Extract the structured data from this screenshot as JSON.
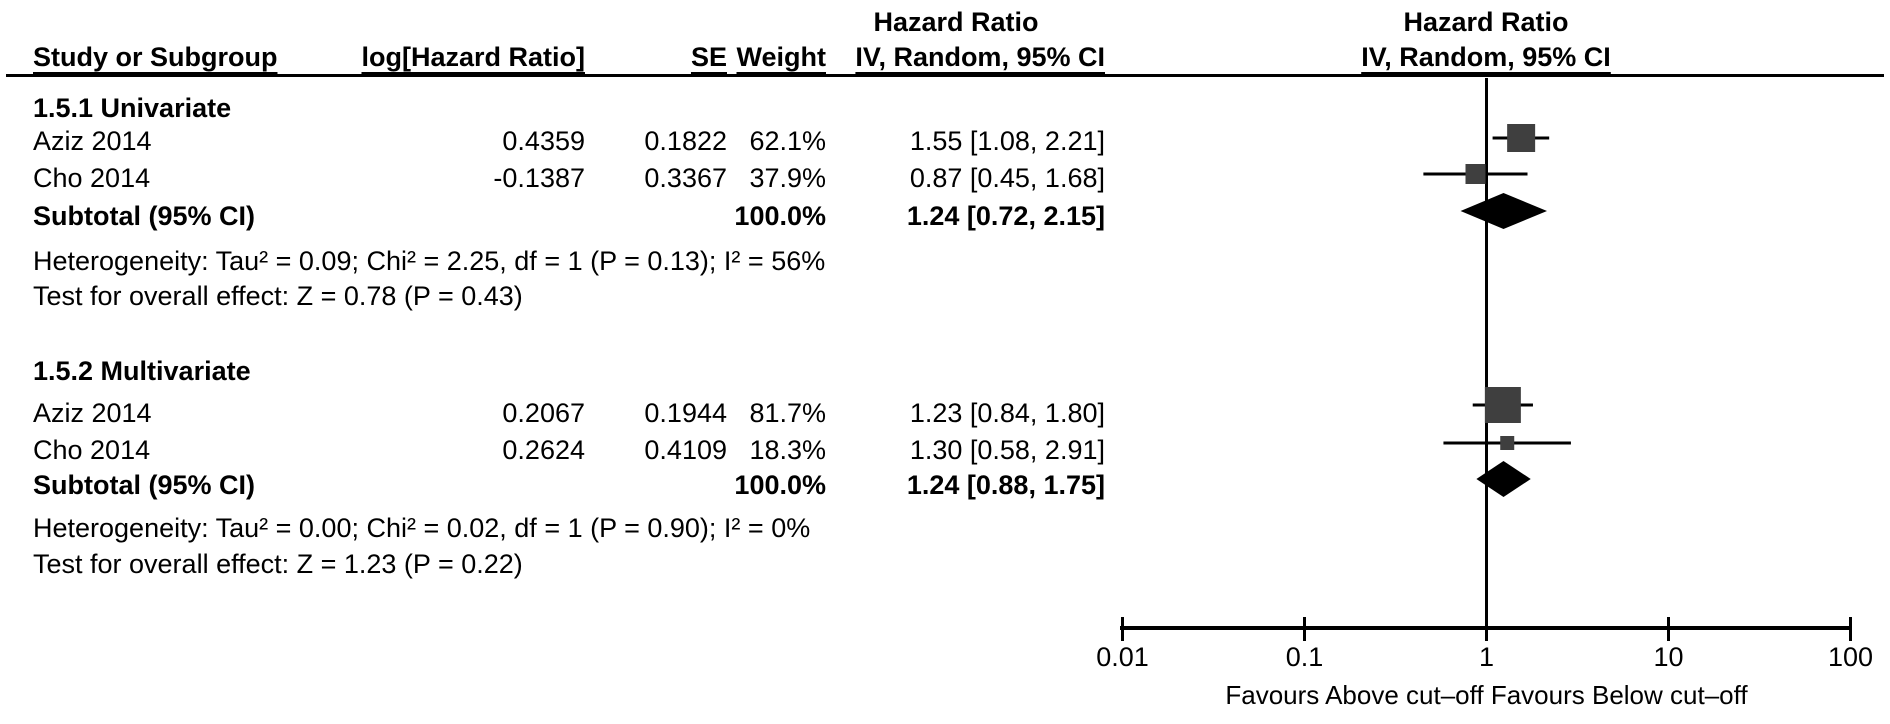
{
  "header": {
    "study": "Study or Subgroup",
    "log_hr": "log[Hazard Ratio]",
    "se": "SE",
    "weight": "Weight",
    "hazard_ratio_left": "Hazard Ratio",
    "ci_left": "IV, Random, 95% CI",
    "hazard_ratio_right": "Hazard Ratio",
    "ci_right": "IV, Random, 95% CI"
  },
  "subgroups": [
    {
      "title": "1.5.1 Univariate",
      "studies": [
        {
          "name": "Aziz 2014",
          "log_hr": "0.4359",
          "se": "0.1822",
          "weight": "62.1%",
          "ci": "1.55 [1.08, 2.21]"
        },
        {
          "name": "Cho 2014",
          "log_hr": "-0.1387",
          "se": "0.3367",
          "weight": "37.9%",
          "ci": "0.87 [0.45, 1.68]"
        }
      ],
      "subtotal": {
        "label": "Subtotal (95% CI)",
        "weight": "100.0%",
        "ci": "1.24 [0.72, 2.15]"
      },
      "heterogeneity": "Heterogeneity: Tau² = 0.09; Chi² = 2.25, df = 1 (P = 0.13); I² = 56%",
      "overall_effect": "Test for overall effect: Z = 0.78 (P = 0.43)"
    },
    {
      "title": "1.5.2 Multivariate",
      "studies": [
        {
          "name": "Aziz 2014",
          "log_hr": "0.2067",
          "se": "0.1944",
          "weight": "81.7%",
          "ci": "1.23 [0.84, 1.80]"
        },
        {
          "name": "Cho 2014",
          "log_hr": "0.2624",
          "se": "0.4109",
          "weight": "18.3%",
          "ci": "1.30 [0.58, 2.91]"
        }
      ],
      "subtotal": {
        "label": "Subtotal (95% CI)",
        "weight": "100.0%",
        "ci": "1.24 [0.88, 1.75]"
      },
      "heterogeneity": "Heterogeneity: Tau² = 0.00; Chi² = 0.02, df = 1 (P = 0.90); I² = 0%",
      "overall_effect": "Test for overall effect: Z = 1.23 (P = 0.22)"
    }
  ],
  "chart_data": {
    "type": "forest",
    "x_scale": "log10",
    "x_range": [
      0.01,
      100
    ],
    "x_ticks": [
      0.01,
      0.1,
      1,
      10,
      100
    ],
    "x_tick_labels": [
      "0.01",
      "0.1",
      "1",
      "10",
      "100"
    ],
    "x_axis_label": "Favours Above cut–off Favours Below cut–off",
    "no_effect_line": 1,
    "series": [
      {
        "subgroup": "1.5.1 Univariate",
        "study": "Aziz 2014",
        "hr": 1.55,
        "ci_low": 1.08,
        "ci_high": 2.21,
        "weight_pct": 62.1,
        "row": "s1r1"
      },
      {
        "subgroup": "1.5.1 Univariate",
        "study": "Cho 2014",
        "hr": 0.87,
        "ci_low": 0.45,
        "ci_high": 1.68,
        "weight_pct": 37.9,
        "row": "s1r2"
      },
      {
        "subgroup": "1.5.2 Multivariate",
        "study": "Aziz 2014",
        "hr": 1.23,
        "ci_low": 0.84,
        "ci_high": 1.8,
        "weight_pct": 81.7,
        "row": "s2r1"
      },
      {
        "subgroup": "1.5.2 Multivariate",
        "study": "Cho 2014",
        "hr": 1.3,
        "ci_low": 0.58,
        "ci_high": 2.91,
        "weight_pct": 18.3,
        "row": "s2r2"
      }
    ],
    "diamonds": [
      {
        "subgroup": "1.5.1 Univariate",
        "hr": 1.24,
        "ci_low": 0.72,
        "ci_high": 2.15,
        "row": "s1d"
      },
      {
        "subgroup": "1.5.2 Multivariate",
        "hr": 1.24,
        "ci_low": 0.88,
        "ci_high": 1.75,
        "row": "s2d"
      }
    ]
  },
  "colors": {
    "text": "#000000",
    "square": "#3f3f3f",
    "diamond": "#000000",
    "line": "#000000",
    "background": "#ffffff"
  }
}
